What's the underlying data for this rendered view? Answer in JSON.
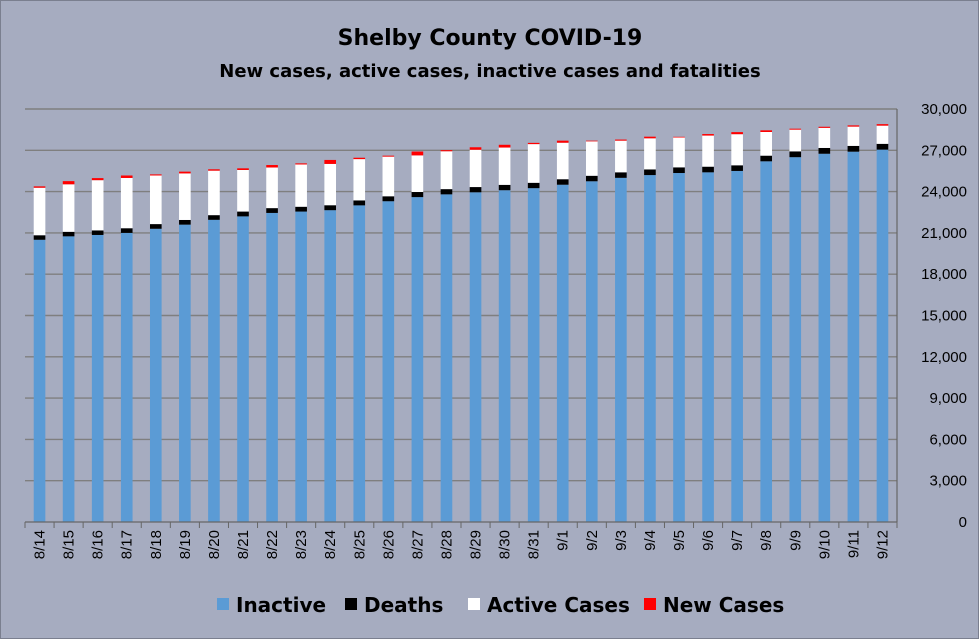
{
  "chart_data": {
    "type": "bar",
    "stacked": true,
    "title": "Shelby County COVID-19",
    "subtitle": "New cases, active cases, inactive cases and fatalities",
    "ylim": [
      0,
      30000
    ],
    "ytick_labels": [
      "0",
      "3,000",
      "6,000",
      "9,000",
      "12,000",
      "15,000",
      "18,000",
      "21,000",
      "24,000",
      "27,000",
      "30,000"
    ],
    "y_axis_side": "right",
    "grid": true,
    "legend_placement": "bottom",
    "categories": [
      "8/14",
      "8/15",
      "8/16",
      "8/17",
      "8/18",
      "8/19",
      "8/20",
      "8/21",
      "8/22",
      "8/23",
      "8/24",
      "8/25",
      "8/26",
      "8/27",
      "8/28",
      "8/29",
      "8/30",
      "8/31",
      "9/1",
      "9/2",
      "9/3",
      "9/4",
      "9/5",
      "9/6",
      "9/7",
      "9/8",
      "9/9",
      "9/10",
      "9/11",
      "9/12"
    ],
    "series": [
      {
        "name": "Inactive",
        "color": "#5b9bd5",
        "values": [
          20500,
          20750,
          20850,
          21000,
          21300,
          21600,
          21950,
          22200,
          22450,
          22550,
          22650,
          23000,
          23300,
          23600,
          23800,
          23950,
          24100,
          24250,
          24500,
          24750,
          25000,
          25200,
          25350,
          25400,
          25500,
          26200,
          26500,
          26750,
          26900,
          27050
        ]
      },
      {
        "name": "Deaths",
        "color": "#000000",
        "values": [
          330,
          330,
          330,
          340,
          340,
          340,
          340,
          350,
          350,
          350,
          360,
          360,
          360,
          370,
          380,
          380,
          390,
          390,
          400,
          400,
          400,
          410,
          410,
          410,
          410,
          410,
          420,
          420,
          420,
          420
        ]
      },
      {
        "name": "Active Cases",
        "color": "#ffffff",
        "values": [
          3450,
          3450,
          3650,
          3650,
          3530,
          3380,
          3230,
          3020,
          2950,
          3070,
          3000,
          3000,
          2880,
          2660,
          2750,
          2710,
          2710,
          2810,
          2650,
          2500,
          2300,
          2260,
          2170,
          2260,
          2260,
          1720,
          1580,
          1460,
          1400,
          1320
        ]
      },
      {
        "name": "New Cases",
        "color": "#ff0000",
        "values": [
          100,
          230,
          150,
          180,
          80,
          130,
          100,
          120,
          180,
          80,
          290,
          100,
          70,
          280,
          80,
          180,
          200,
          90,
          150,
          50,
          80,
          120,
          50,
          110,
          150,
          120,
          70,
          80,
          90,
          110
        ]
      }
    ]
  }
}
